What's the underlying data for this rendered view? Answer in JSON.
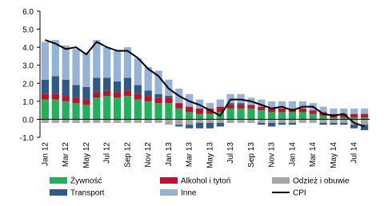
{
  "chart_data": {
    "type": "bar",
    "stacked": true,
    "categories": [
      "Jan 12",
      null,
      "Mar 12",
      null,
      "May 12",
      null,
      "Jul 12",
      null,
      "Sep 12",
      null,
      "Nov 12",
      null,
      "Jan 13",
      null,
      "Mar 13",
      null,
      "May 13",
      null,
      "Jul 13",
      null,
      "Sep 13",
      null,
      "Nov 13",
      null,
      "Jan 14",
      null,
      "Mar 14",
      null,
      "May 14",
      null,
      "Jul 14",
      null
    ],
    "series": [
      {
        "name": "Żywność",
        "color": "#1fb25a",
        "values": [
          1.1,
          1.1,
          1.0,
          0.9,
          0.8,
          1.2,
          1.3,
          1.2,
          1.3,
          1.1,
          1.0,
          0.9,
          0.9,
          0.6,
          0.4,
          0.3,
          0.3,
          0.4,
          0.6,
          0.6,
          0.6,
          0.5,
          0.4,
          0.4,
          0.4,
          0.4,
          0.3,
          0.2,
          0.1,
          0.1,
          0.1,
          0.1
        ]
      },
      {
        "name": "Alkohol i tytoń",
        "color": "#c0112b",
        "values": [
          0.3,
          0.3,
          0.3,
          0.3,
          0.3,
          0.3,
          0.3,
          0.3,
          0.3,
          0.3,
          0.3,
          0.3,
          0.3,
          0.3,
          0.3,
          0.3,
          0.3,
          0.3,
          0.2,
          0.2,
          0.2,
          0.2,
          0.2,
          0.2,
          0.2,
          0.2,
          0.2,
          0.2,
          0.2,
          0.2,
          0.2,
          0.2
        ]
      },
      {
        "name": "Odzież i obuwie",
        "color": "#a6a6a6",
        "values": [
          -0.2,
          -0.2,
          -0.2,
          -0.2,
          -0.2,
          -0.2,
          -0.2,
          -0.2,
          -0.2,
          -0.2,
          -0.2,
          -0.2,
          -0.3,
          -0.3,
          -0.3,
          -0.2,
          -0.2,
          -0.2,
          -0.2,
          -0.2,
          -0.2,
          -0.2,
          -0.2,
          -0.2,
          -0.2,
          -0.2,
          -0.2,
          -0.2,
          -0.2,
          -0.2,
          -0.3,
          -0.3
        ]
      },
      {
        "name": "Transport",
        "color": "#2e5a87",
        "values": [
          0.8,
          1.0,
          0.9,
          0.7,
          0.7,
          0.8,
          0.7,
          0.6,
          0.7,
          0.5,
          0.3,
          0.2,
          0.1,
          -0.1,
          -0.2,
          -0.3,
          -0.3,
          -0.2,
          0.1,
          0.1,
          0.0,
          -0.1,
          -0.2,
          -0.1,
          -0.1,
          0.0,
          0.0,
          -0.1,
          -0.1,
          -0.1,
          -0.2,
          -0.3
        ]
      },
      {
        "name": "Inne",
        "color": "#95b3d7",
        "values": [
          2.1,
          2.0,
          1.9,
          2.0,
          1.9,
          2.1,
          1.7,
          1.7,
          1.7,
          1.5,
          1.3,
          1.3,
          0.9,
          0.8,
          0.7,
          0.5,
          0.3,
          0.4,
          0.5,
          0.5,
          0.4,
          0.4,
          0.4,
          0.4,
          0.4,
          0.4,
          0.4,
          0.3,
          0.3,
          0.3,
          0.3,
          0.3
        ]
      },
      {
        "name": "CPI",
        "color": "#000000",
        "kind": "line",
        "values": [
          4.4,
          4.2,
          3.9,
          4.0,
          3.6,
          4.3,
          4.0,
          3.8,
          3.8,
          3.4,
          2.8,
          2.4,
          1.7,
          1.3,
          1.0,
          0.8,
          0.5,
          0.2,
          1.1,
          1.1,
          1.0,
          0.8,
          0.6,
          0.7,
          0.5,
          0.7,
          0.7,
          0.3,
          0.2,
          0.3,
          -0.2,
          -0.4
        ]
      }
    ],
    "ylim": [
      -1.0,
      6.0
    ],
    "yticks": [
      {
        "value": -1,
        "label": "-1.0"
      },
      {
        "value": 0,
        "label": "0.0"
      },
      {
        "value": 1,
        "label": "1.0"
      },
      {
        "value": 2,
        "label": "2.0"
      },
      {
        "value": 3,
        "label": "3.0"
      },
      {
        "value": 4,
        "label": "4.0"
      },
      {
        "value": 5,
        "label": "5.0"
      },
      {
        "value": 6,
        "label": "6.0"
      }
    ],
    "grid": false
  }
}
